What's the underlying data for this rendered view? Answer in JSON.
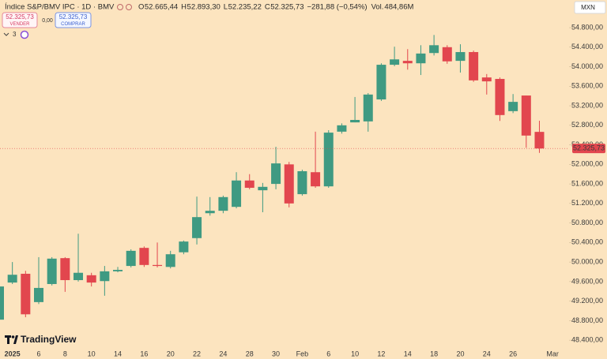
{
  "header": {
    "symbol": "Índice S&P/BMV IPC · 1D · BMV",
    "ohlc": [
      {
        "key": "O",
        "value": "52.665,44"
      },
      {
        "key": "H",
        "value": "52.893,30"
      },
      {
        "key": "L",
        "value": "52.235,22"
      },
      {
        "key": "C",
        "value": "52.325,73"
      }
    ],
    "change": "−281,88 (−0,54%)",
    "volume_key": "Vol.",
    "volume": "484,86M"
  },
  "trade": {
    "sell_price": "52.325,73",
    "sell_label": "VENDER",
    "spread": "0,00",
    "buy_price": "52.325,73",
    "buy_label": "COMPRAR"
  },
  "indicators_count": "3",
  "currency": "MXN",
  "brand": "TradingView",
  "chart_data": {
    "type": "candlestick",
    "categories": [
      null,
      "2025",
      null,
      "6",
      null,
      "8",
      null,
      "10",
      null,
      "14",
      null,
      "16",
      null,
      "20",
      null,
      "22",
      null,
      "24",
      null,
      "28",
      null,
      "30",
      null,
      "Feb",
      null,
      "6",
      null,
      "10",
      null,
      "12",
      null,
      "14",
      null,
      "18",
      null,
      "20",
      null,
      "24",
      null,
      "26",
      null,
      null,
      "Mar"
    ],
    "open": [
      48820,
      49580,
      49760,
      49180,
      49550,
      50080,
      49630,
      49730,
      49610,
      49810,
      49920,
      50290,
      49940,
      49900,
      50200,
      50490,
      51000,
      51050,
      51130,
      51670,
      51470,
      51600,
      52000,
      51390,
      51840,
      51550,
      52670,
      52860,
      52880,
      53330,
      54040,
      54120,
      54070,
      54280,
      54400,
      54120,
      54300,
      53780,
      53750,
      53090,
      53410,
      52665.44,
      null
    ],
    "high": [
      49550,
      50000,
      49820,
      50100,
      50100,
      50100,
      50580,
      49780,
      49920,
      49900,
      50260,
      50320,
      50400,
      50230,
      50440,
      51340,
      51330,
      51360,
      51840,
      51800,
      51620,
      52360,
      52050,
      51890,
      52670,
      52700,
      52840,
      53380,
      53460,
      54070,
      54410,
      54360,
      54440,
      54650,
      54440,
      54460,
      54330,
      53850,
      53780,
      53440,
      53410,
      52893.3,
      null
    ],
    "low": [
      48770,
      49550,
      48870,
      49140,
      49520,
      49390,
      49600,
      49500,
      49310,
      49790,
      49890,
      49900,
      49890,
      49870,
      50160,
      50360,
      50950,
      51000,
      51100,
      51490,
      51020,
      51490,
      51120,
      51360,
      51520,
      51520,
      52630,
      52860,
      52670,
      53300,
      54010,
      53940,
      53830,
      54230,
      54060,
      53880,
      53690,
      53430,
      52890,
      53050,
      52340,
      52235.22,
      null
    ],
    "close": [
      49500,
      49740,
      48930,
      49470,
      50070,
      49630,
      49780,
      49580,
      49810,
      49840,
      50230,
      49940,
      49920,
      50160,
      50420,
      50920,
      51050,
      51330,
      51670,
      51520,
      51540,
      52020,
      51200,
      51860,
      51550,
      52650,
      52800,
      52910,
      53430,
      54040,
      54150,
      54070,
      54270,
      54440,
      54110,
      54300,
      53720,
      53700,
      53010,
      53280,
      52590,
      52325.73,
      null
    ],
    "up_color": "#3f9a82",
    "down_color": "#e2464e",
    "ylim": [
      48257,
      55366
    ],
    "yticks": [
      {
        "value": 48400,
        "label": "48.400,00"
      },
      {
        "value": 48800,
        "label": "48.800,00"
      },
      {
        "value": 49200,
        "label": "49.200,00"
      },
      {
        "value": 49600,
        "label": "49.600,00"
      },
      {
        "value": 50000,
        "label": "50.000,00"
      },
      {
        "value": 50400,
        "label": "50.400,00"
      },
      {
        "value": 50800,
        "label": "50.800,00"
      },
      {
        "value": 51200,
        "label": "51.200,00"
      },
      {
        "value": 51600,
        "label": "51.600,00"
      },
      {
        "value": 52000,
        "label": "52.000,00"
      },
      {
        "value": 52400,
        "label": "52.400,00"
      },
      {
        "value": 52800,
        "label": "52.800,00"
      },
      {
        "value": 53200,
        "label": "53.200,00"
      },
      {
        "value": 53600,
        "label": "53.600,00"
      },
      {
        "value": 54000,
        "label": "54.000,00"
      },
      {
        "value": 54400,
        "label": "54.400,00"
      },
      {
        "value": 54800,
        "label": "54.800,00"
      }
    ],
    "price_line": {
      "value": 52325.73,
      "label": "52.325,73"
    },
    "grid": false
  }
}
